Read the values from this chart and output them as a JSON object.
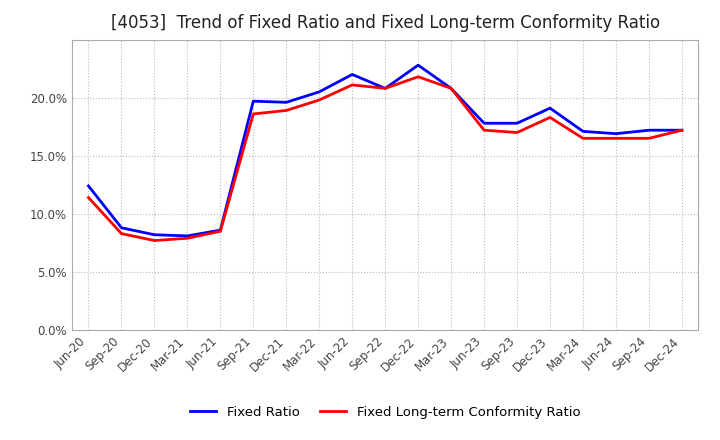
{
  "title": "[4053]  Trend of Fixed Ratio and Fixed Long-term Conformity Ratio",
  "x_labels": [
    "Jun-20",
    "Sep-20",
    "Dec-20",
    "Mar-21",
    "Jun-21",
    "Sep-21",
    "Dec-21",
    "Mar-22",
    "Jun-22",
    "Sep-22",
    "Dec-22",
    "Mar-23",
    "Jun-23",
    "Sep-23",
    "Dec-23",
    "Mar-24",
    "Jun-24",
    "Sep-24",
    "Dec-24"
  ],
  "fixed_ratio": [
    0.124,
    0.088,
    0.082,
    0.081,
    0.086,
    0.197,
    0.196,
    0.205,
    0.22,
    0.208,
    0.228,
    0.208,
    0.178,
    0.178,
    0.191,
    0.171,
    0.169,
    0.172,
    0.172
  ],
  "fixed_lt_ratio": [
    0.114,
    0.083,
    0.077,
    0.079,
    0.085,
    0.186,
    0.189,
    0.198,
    0.211,
    0.208,
    0.218,
    0.208,
    0.172,
    0.17,
    0.183,
    0.165,
    0.165,
    0.165,
    0.172
  ],
  "fixed_ratio_color": "#0000FF",
  "fixed_lt_ratio_color": "#FF0000",
  "line_width": 2.0,
  "ylim": [
    0.0,
    0.25
  ],
  "yticks": [
    0.0,
    0.05,
    0.1,
    0.15,
    0.2
  ],
  "grid_color": "#bbbbbb",
  "bg_color": "#ffffff",
  "plot_bg_color": "#ffffff",
  "legend_fixed": "Fixed Ratio",
  "legend_lt": "Fixed Long-term Conformity Ratio",
  "title_fontsize": 12,
  "tick_fontsize": 8.5,
  "legend_fontsize": 9.5
}
